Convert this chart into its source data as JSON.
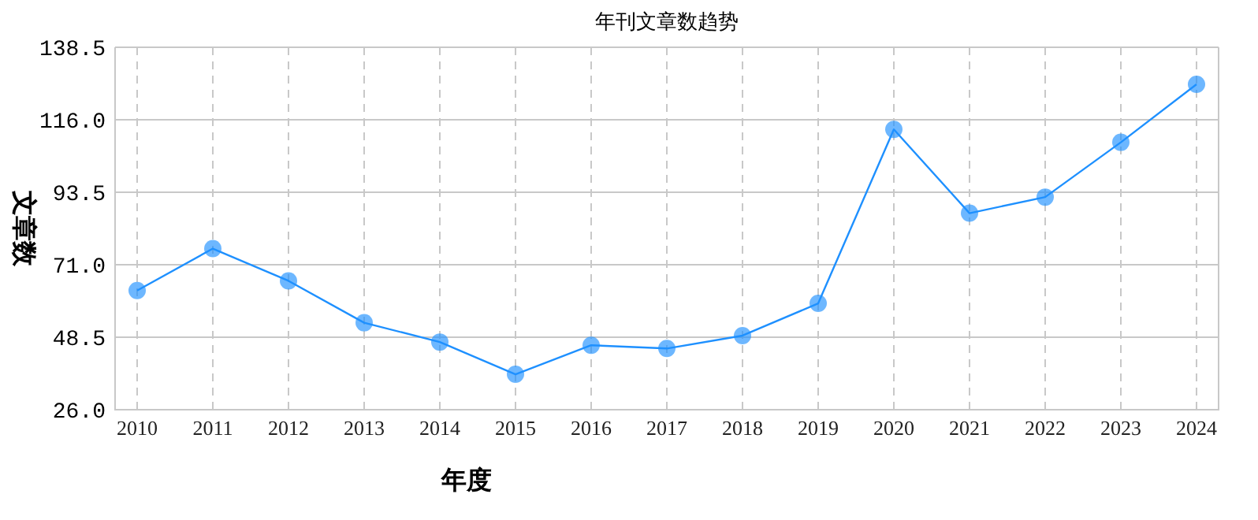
{
  "chart_data": {
    "type": "line",
    "title": "年刊文章数趋势",
    "xlabel": "年度",
    "ylabel": "文章数",
    "categories": [
      "2010",
      "2011",
      "2012",
      "2013",
      "2014",
      "2015",
      "2016",
      "2017",
      "2018",
      "2019",
      "2020",
      "2021",
      "2022",
      "2023",
      "2024"
    ],
    "series": [
      {
        "color": "#1e90ff",
        "values": [
          63,
          76,
          66,
          53,
          47,
          37,
          46,
          45,
          49,
          59,
          113,
          87,
          92,
          109,
          127
        ]
      }
    ],
    "ylim": [
      26,
      138.5
    ],
    "yticks": [
      {
        "value": 26,
        "label": "26.0"
      },
      {
        "value": 48.5,
        "label": "48.5"
      },
      {
        "value": 71,
        "label": "71.0"
      },
      {
        "value": 93.5,
        "label": "93.5"
      },
      {
        "value": 116,
        "label": "116.0"
      },
      {
        "value": 138.5,
        "label": "138.5"
      }
    ],
    "grid": true,
    "marker": "circle",
    "line_style": "solid"
  }
}
